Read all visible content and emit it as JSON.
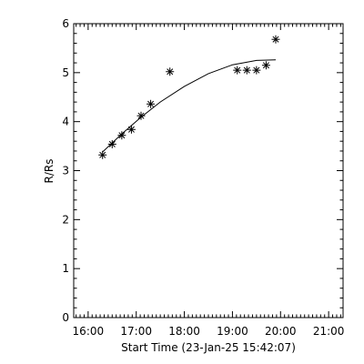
{
  "chart_data": {
    "type": "scatter",
    "xlabel": "Start Time (23-Jan-25 15:42:07)",
    "ylabel": "R/Rs",
    "xlim": [
      "15:42",
      "21:18"
    ],
    "ylim": [
      0,
      6
    ],
    "x_ticks": [
      "16:00",
      "17:00",
      "18:00",
      "19:00",
      "20:00",
      "21:00"
    ],
    "y_ticks": [
      "0",
      "1",
      "2",
      "3",
      "4",
      "5",
      "6"
    ],
    "grid": false,
    "series": [
      {
        "kind": "points",
        "marker": "asterisk",
        "x": [
          "16:18",
          "16:30",
          "16:42",
          "16:54",
          "17:06",
          "17:18",
          "17:42",
          "19:06",
          "19:18",
          "19:30",
          "19:42",
          "19:54"
        ],
        "y": [
          3.32,
          3.54,
          3.72,
          3.84,
          4.12,
          4.36,
          5.02,
          5.05,
          5.05,
          5.05,
          5.15,
          5.68
        ]
      },
      {
        "kind": "line",
        "x": [
          "16:18",
          "16:42",
          "17:06",
          "17:30",
          "18:00",
          "18:30",
          "19:00",
          "19:30",
          "19:54"
        ],
        "y": [
          3.38,
          3.75,
          4.09,
          4.4,
          4.72,
          4.98,
          5.16,
          5.25,
          5.26
        ]
      }
    ]
  }
}
